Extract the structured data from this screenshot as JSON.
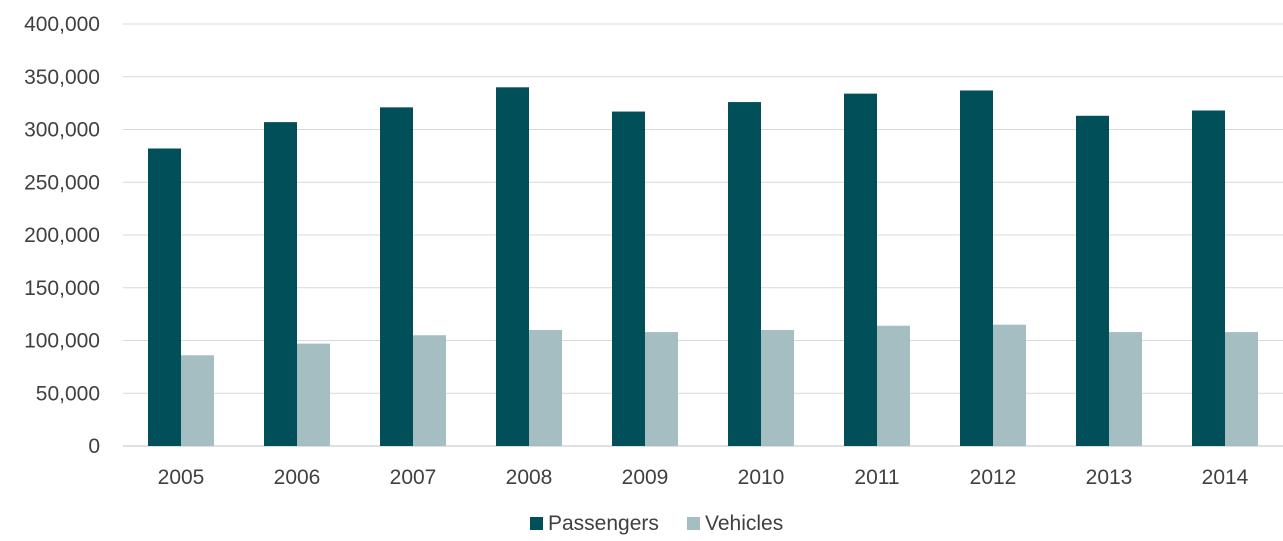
{
  "chart_data": {
    "type": "bar",
    "categories": [
      "2005",
      "2006",
      "2007",
      "2008",
      "2009",
      "2010",
      "2011",
      "2012",
      "2013",
      "2014"
    ],
    "series": [
      {
        "name": "Passengers",
        "color": "#004f59",
        "values": [
          282000,
          307000,
          321000,
          340000,
          317000,
          326000,
          334000,
          337000,
          313000,
          318000
        ]
      },
      {
        "name": "Vehicles",
        "color": "#a5bec2",
        "values": [
          86000,
          97000,
          105000,
          110000,
          108000,
          110000,
          114000,
          115000,
          108000,
          108000
        ]
      }
    ],
    "yticks": [
      "0",
      "50,000",
      "100,000",
      "150,000",
      "200,000",
      "250,000",
      "300,000",
      "350,000",
      "400,000"
    ],
    "ylim": [
      0,
      400000
    ],
    "ystep": 50000,
    "title": "",
    "xlabel": "",
    "ylabel": "",
    "grid": true,
    "legend": "bottom-center"
  }
}
